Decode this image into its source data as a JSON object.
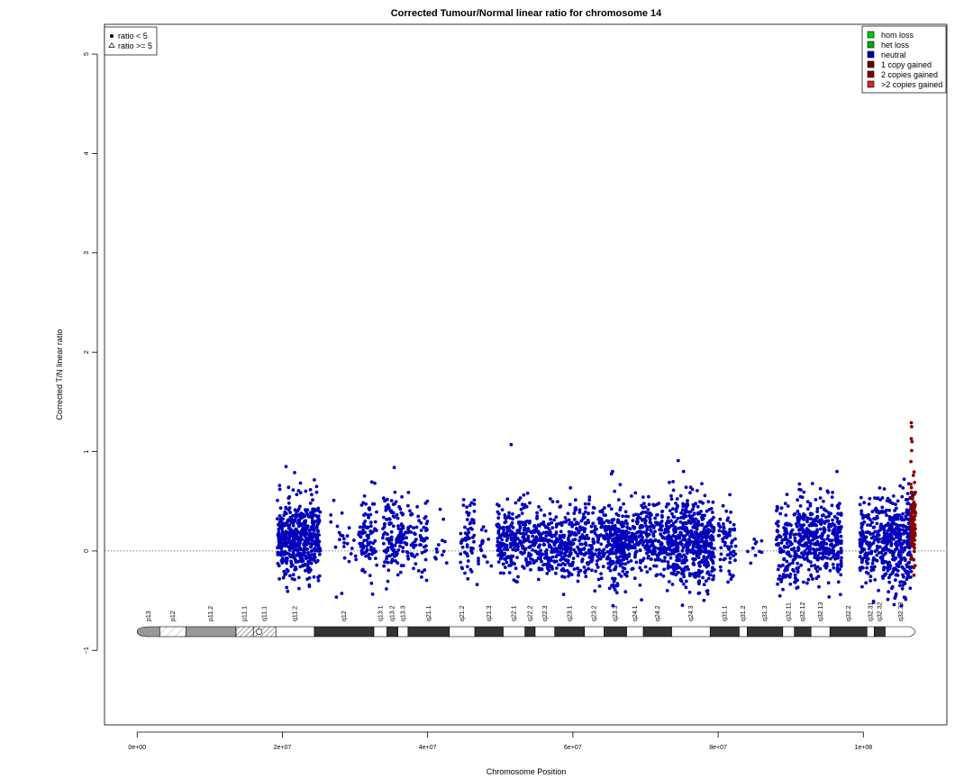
{
  "chart_data": {
    "type": "scatter",
    "title": "Corrected Tumour/Normal linear ratio for chromosome  14",
    "xlabel": "Chromosome Position",
    "ylabel": "Corrected T/N linear ratio",
    "xlim": [
      -4500000,
      111500000
    ],
    "ylim": [
      -1.75,
      5.3
    ],
    "x_ticks": [
      0,
      20000000,
      40000000,
      60000000,
      80000000,
      100000000
    ],
    "x_tick_labels": [
      "0e+00",
      "2e+07",
      "4e+07",
      "6e+07",
      "8e+07",
      "1e+08"
    ],
    "y_ticks": [
      -1,
      0,
      1,
      2,
      3,
      4,
      5
    ],
    "y_tick_labels": [
      "−1",
      "0",
      "1",
      "2",
      "3",
      "4",
      "5"
    ],
    "reference_line": 0,
    "shape_legend": {
      "position": "top-left",
      "entries": [
        {
          "label": "ratio < 5",
          "symbol": "dot"
        },
        {
          "label": "ratio >= 5",
          "symbol": "triangle"
        }
      ]
    },
    "color_legend": {
      "position": "top-right",
      "entries": [
        {
          "label": "hom loss",
          "color": "#00cc00"
        },
        {
          "label": "het loss",
          "color": "#00aa00"
        },
        {
          "label": "neutral",
          "color": "#0000aa"
        },
        {
          "label": "1 copy gained",
          "color": "#660000"
        },
        {
          "label": "2 copies gained",
          "color": "#880000"
        },
        {
          "label": ">2 copies gained",
          "color": "#dd2222"
        }
      ]
    },
    "series": [
      {
        "name": "neutral",
        "color": "#0000bb",
        "segments": [
          {
            "start": 19300000,
            "end": 25200000,
            "n": 520,
            "mean": 0.12,
            "sd": 0.2
          },
          {
            "start": 26500000,
            "end": 30500000,
            "n": 25,
            "mean": 0.05,
            "sd": 0.2
          },
          {
            "start": 30500000,
            "end": 33000000,
            "n": 90,
            "mean": 0.1,
            "sd": 0.2
          },
          {
            "start": 33800000,
            "end": 36500000,
            "n": 120,
            "mean": 0.15,
            "sd": 0.2
          },
          {
            "start": 36500000,
            "end": 40000000,
            "n": 90,
            "mean": 0.1,
            "sd": 0.18
          },
          {
            "start": 41000000,
            "end": 43000000,
            "n": 12,
            "mean": 0.0,
            "sd": 0.15
          },
          {
            "start": 44500000,
            "end": 46500000,
            "n": 60,
            "mean": 0.15,
            "sd": 0.18
          },
          {
            "start": 46800000,
            "end": 49000000,
            "n": 20,
            "mean": 0.05,
            "sd": 0.15
          },
          {
            "start": 49500000,
            "end": 54000000,
            "n": 220,
            "mean": 0.13,
            "sd": 0.18
          },
          {
            "start": 54000000,
            "end": 57000000,
            "n": 140,
            "mean": 0.08,
            "sd": 0.17
          },
          {
            "start": 57000000,
            "end": 59500000,
            "n": 130,
            "mean": 0.05,
            "sd": 0.18
          },
          {
            "start": 59500000,
            "end": 65000000,
            "n": 260,
            "mean": 0.1,
            "sd": 0.18
          },
          {
            "start": 65000000,
            "end": 67500000,
            "n": 200,
            "mean": 0.05,
            "sd": 0.22
          },
          {
            "start": 67500000,
            "end": 73000000,
            "n": 260,
            "mean": 0.12,
            "sd": 0.18
          },
          {
            "start": 73000000,
            "end": 79500000,
            "n": 520,
            "mean": 0.1,
            "sd": 0.22
          },
          {
            "start": 80000000,
            "end": 82500000,
            "n": 70,
            "mean": 0.05,
            "sd": 0.18
          },
          {
            "start": 84000000,
            "end": 86500000,
            "n": 10,
            "mean": 0.05,
            "sd": 0.1
          },
          {
            "start": 88000000,
            "end": 91000000,
            "n": 150,
            "mean": 0.05,
            "sd": 0.2
          },
          {
            "start": 91000000,
            "end": 97000000,
            "n": 380,
            "mean": 0.12,
            "sd": 0.2
          },
          {
            "start": 99500000,
            "end": 102500000,
            "n": 160,
            "mean": 0.1,
            "sd": 0.22
          },
          {
            "start": 102500000,
            "end": 106800000,
            "n": 340,
            "mean": 0.08,
            "sd": 0.25
          }
        ],
        "outliers": [
          [
            51500000,
            1.07
          ],
          [
            74500000,
            0.91
          ],
          [
            20500000,
            0.85
          ],
          [
            35400000,
            0.84
          ]
        ]
      },
      {
        "name": "2 copies gained",
        "color": "#880000",
        "segments": [
          {
            "start": 106500000,
            "end": 107200000,
            "n": 90,
            "mean": 0.3,
            "sd": 0.2
          }
        ],
        "outliers": [
          [
            106600000,
            1.29
          ],
          [
            106650000,
            1.25
          ],
          [
            106600000,
            1.13
          ],
          [
            106700000,
            1.1
          ],
          [
            106650000,
            1.01
          ],
          [
            106550000,
            0.9
          ]
        ]
      }
    ],
    "ideogram": {
      "centromere": 16800000,
      "end": 107400000,
      "bands": [
        {
          "name": "p13",
          "start": 0,
          "end": 3100000,
          "stain": "stalk"
        },
        {
          "name": "p12",
          "start": 3100000,
          "end": 6700000,
          "stain": "gvar"
        },
        {
          "name": "p11.2",
          "start": 6700000,
          "end": 13600000,
          "stain": "gpos50"
        },
        {
          "name": "p11.1",
          "start": 13600000,
          "end": 16000000,
          "stain": "acen"
        },
        {
          "name": "q11.1",
          "start": 16000000,
          "end": 19100000,
          "stain": "acen"
        },
        {
          "name": "q11.2",
          "start": 19100000,
          "end": 24400000,
          "stain": "gneg"
        },
        {
          "name": "q12",
          "start": 24400000,
          "end": 32600000,
          "stain": "gpos100"
        },
        {
          "name": "q13.1",
          "start": 32600000,
          "end": 34400000,
          "stain": "gneg"
        },
        {
          "name": "q13.2",
          "start": 34400000,
          "end": 35900000,
          "stain": "gpos50"
        },
        {
          "name": "q13.3",
          "start": 35900000,
          "end": 37300000,
          "stain": "gneg"
        },
        {
          "name": "q21.1",
          "start": 37300000,
          "end": 43000000,
          "stain": "gpos100"
        },
        {
          "name": "q21.2",
          "start": 43000000,
          "end": 46500000,
          "stain": "gneg"
        },
        {
          "name": "q21.3",
          "start": 46500000,
          "end": 50400000,
          "stain": "gpos100"
        },
        {
          "name": "q22.1",
          "start": 50400000,
          "end": 53400000,
          "stain": "gneg"
        },
        {
          "name": "q22.2",
          "start": 53400000,
          "end": 54800000,
          "stain": "gpos25"
        },
        {
          "name": "q22.3",
          "start": 54800000,
          "end": 57500000,
          "stain": "gneg"
        },
        {
          "name": "q23.1",
          "start": 57500000,
          "end": 61600000,
          "stain": "gpos75"
        },
        {
          "name": "q23.2",
          "start": 61600000,
          "end": 64300000,
          "stain": "gneg"
        },
        {
          "name": "q23.3",
          "start": 64300000,
          "end": 67400000,
          "stain": "gpos50"
        },
        {
          "name": "q24.1",
          "start": 67400000,
          "end": 69700000,
          "stain": "gneg"
        },
        {
          "name": "q24.2",
          "start": 69700000,
          "end": 73600000,
          "stain": "gpos50"
        },
        {
          "name": "q24.3",
          "start": 73600000,
          "end": 78900000,
          "stain": "gneg"
        },
        {
          "name": "q31.1",
          "start": 78900000,
          "end": 82900000,
          "stain": "gpos100"
        },
        {
          "name": "q31.2",
          "start": 82900000,
          "end": 84000000,
          "stain": "gneg"
        },
        {
          "name": "q31.3",
          "start": 84000000,
          "end": 88900000,
          "stain": "gpos100"
        },
        {
          "name": "q32.11",
          "start": 88900000,
          "end": 90500000,
          "stain": "gneg"
        },
        {
          "name": "q32.12",
          "start": 90500000,
          "end": 92800000,
          "stain": "gpos25"
        },
        {
          "name": "q32.13",
          "start": 92800000,
          "end": 95400000,
          "stain": "gneg"
        },
        {
          "name": "q32.2",
          "start": 95400000,
          "end": 100500000,
          "stain": "gpos50"
        },
        {
          "name": "q32.31",
          "start": 100500000,
          "end": 101500000,
          "stain": "gneg"
        },
        {
          "name": "q32.32",
          "start": 101500000,
          "end": 103000000,
          "stain": "gpos50"
        },
        {
          "name": "q32.33",
          "start": 103000000,
          "end": 107400000,
          "stain": "gneg"
        }
      ]
    }
  }
}
